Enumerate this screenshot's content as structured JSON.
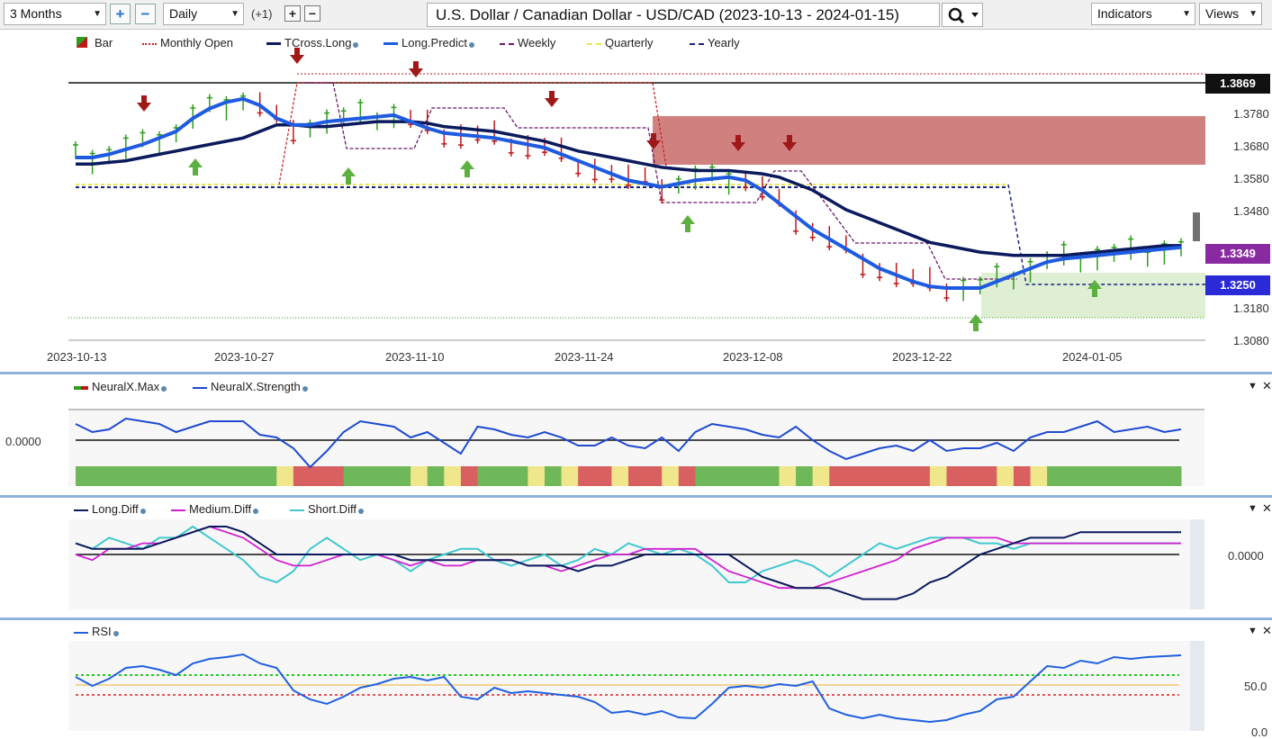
{
  "toolbar": {
    "period": "3 Months",
    "interval": "Daily",
    "offset": "(+1)",
    "title": "U.S. Dollar / Canadian Dollar - USD/CAD (2023-10-13 - 2024-01-15)",
    "indicators_label": "Indicators",
    "views_label": "Views"
  },
  "main_panel": {
    "legend": [
      "Bar",
      "Monthly Open",
      "TCross.Long",
      "Long.Predict",
      "Weekly",
      "Quarterly",
      "Yearly"
    ],
    "price_labels": [
      "1.3780",
      "1.3680",
      "1.3580",
      "1.3480",
      "1.3180",
      "1.3080"
    ],
    "price_tags": {
      "resistance": "1.3869",
      "current": "1.3349",
      "support": "1.3250"
    },
    "date_labels": [
      "2023-10-13",
      "2023-10-27",
      "2023-11-10",
      "2023-11-24",
      "2023-12-08",
      "2023-12-22",
      "2024-01-05"
    ]
  },
  "neural_panel": {
    "legend": [
      "NeuralX.Max",
      "NeuralX.Strength"
    ],
    "zero_label": "0.0000"
  },
  "diff_panel": {
    "legend": [
      "Long.Diff",
      "Medium.Diff",
      "Short.Diff"
    ],
    "zero_label": "0.0000"
  },
  "rsi_panel": {
    "legend": [
      "RSI"
    ],
    "labels": [
      "50.0",
      "0.0"
    ]
  },
  "colors": {
    "tcross": "#0a1a5c",
    "predict": "#1f5be0",
    "bull": "#2e9d1e",
    "bear": "#c01818",
    "monthly": "#d02020",
    "weekly": "#6a1a6a",
    "quarterly": "#e6e650",
    "yearly": "#1a237e",
    "long_diff": "#0a1a5c",
    "medium_diff": "#d020d0",
    "short_diff": "#40c8d0",
    "rsi": "#2060e0"
  },
  "chart_data": {
    "type": "line",
    "x": [
      "2023-10-13",
      "2023-10-16",
      "2023-10-17",
      "2023-10-18",
      "2023-10-19",
      "2023-10-20",
      "2023-10-23",
      "2023-10-24",
      "2023-10-25",
      "2023-10-26",
      "2023-10-27",
      "2023-10-30",
      "2023-10-31",
      "2023-11-01",
      "2023-11-02",
      "2023-11-03",
      "2023-11-06",
      "2023-11-07",
      "2023-11-08",
      "2023-11-09",
      "2023-11-10",
      "2023-11-13",
      "2023-11-14",
      "2023-11-15",
      "2023-11-16",
      "2023-11-17",
      "2023-11-20",
      "2023-11-21",
      "2023-11-22",
      "2023-11-23",
      "2023-11-24",
      "2023-11-27",
      "2023-11-28",
      "2023-11-29",
      "2023-11-30",
      "2023-12-01",
      "2023-12-04",
      "2023-12-05",
      "2023-12-06",
      "2023-12-07",
      "2023-12-08",
      "2023-12-11",
      "2023-12-12",
      "2023-12-13",
      "2023-12-14",
      "2023-12-15",
      "2023-12-18",
      "2023-12-19",
      "2023-12-20",
      "2023-12-21",
      "2023-12-22",
      "2023-12-25",
      "2023-12-26",
      "2023-12-27",
      "2023-12-28",
      "2023-12-29",
      "2024-01-01",
      "2024-01-02",
      "2024-01-03",
      "2024-01-04",
      "2024-01-05",
      "2024-01-08",
      "2024-01-09",
      "2024-01-10",
      "2024-01-11",
      "2024-01-12",
      "2024-01-15"
    ],
    "series": [
      {
        "name": "TCross.Long",
        "values": [
          1.362,
          1.362,
          1.3625,
          1.363,
          1.364,
          1.365,
          1.366,
          1.367,
          1.368,
          1.369,
          1.37,
          1.372,
          1.374,
          1.374,
          1.3735,
          1.3735,
          1.374,
          1.3745,
          1.375,
          1.375,
          1.375,
          1.3745,
          1.3735,
          1.373,
          1.3725,
          1.372,
          1.371,
          1.37,
          1.369,
          1.3675,
          1.366,
          1.365,
          1.364,
          1.363,
          1.362,
          1.361,
          1.3605,
          1.36,
          1.36,
          1.36,
          1.3595,
          1.359,
          1.358,
          1.356,
          1.354,
          1.351,
          1.348,
          1.346,
          1.344,
          1.342,
          1.34,
          1.338,
          1.337,
          1.336,
          1.335,
          1.3345,
          1.334,
          1.334,
          1.334,
          1.334,
          1.3345,
          1.335,
          1.3355,
          1.336,
          1.3365,
          1.337,
          1.337
        ]
      },
      {
        "name": "Long.Predict",
        "values": [
          1.364,
          1.364,
          1.365,
          1.3665,
          1.368,
          1.37,
          1.372,
          1.376,
          1.379,
          1.381,
          1.382,
          1.38,
          1.376,
          1.374,
          1.374,
          1.375,
          1.3755,
          1.376,
          1.3765,
          1.377,
          1.375,
          1.373,
          1.3715,
          1.371,
          1.3705,
          1.37,
          1.369,
          1.368,
          1.367,
          1.365,
          1.363,
          1.361,
          1.359,
          1.357,
          1.356,
          1.355,
          1.356,
          1.357,
          1.3575,
          1.358,
          1.357,
          1.354,
          1.35,
          1.346,
          1.342,
          1.339,
          1.336,
          1.333,
          1.33,
          1.328,
          1.326,
          1.3245,
          1.324,
          1.324,
          1.324,
          1.326,
          1.328,
          1.33,
          1.332,
          1.333,
          1.3335,
          1.334,
          1.3345,
          1.335,
          1.3355,
          1.336,
          1.3365
        ]
      },
      {
        "name": "NeuralX.Strength",
        "values": [
          0.6,
          0.3,
          0.4,
          0.8,
          0.7,
          0.6,
          0.3,
          0.5,
          0.7,
          0.7,
          0.7,
          0.2,
          0.1,
          -0.3,
          -1.0,
          -0.4,
          0.3,
          0.7,
          0.6,
          0.5,
          0.1,
          0.3,
          -0.1,
          -0.5,
          0.5,
          0.4,
          0.2,
          0.1,
          0.3,
          0.1,
          -0.2,
          -0.2,
          0.1,
          -0.2,
          -0.3,
          0.1,
          -0.4,
          0.3,
          0.6,
          0.5,
          0.4,
          0.2,
          0.1,
          0.5,
          0.0,
          -0.4,
          -0.7,
          -0.5,
          -0.3,
          -0.2,
          -0.4,
          0.0,
          -0.4,
          -0.3,
          -0.3,
          -0.1,
          -0.4,
          0.1,
          0.3,
          0.3,
          0.5,
          0.7,
          0.3,
          0.4,
          0.5,
          0.3,
          0.4
        ]
      },
      {
        "name": "Long.Diff",
        "values": [
          0.2,
          0.1,
          0.1,
          0.1,
          0.1,
          0.2,
          0.3,
          0.4,
          0.5,
          0.5,
          0.4,
          0.2,
          0.0,
          0.0,
          0.0,
          0.0,
          0.0,
          0.0,
          0.0,
          0.0,
          -0.1,
          -0.1,
          -0.1,
          -0.1,
          -0.1,
          -0.1,
          -0.1,
          -0.2,
          -0.2,
          -0.2,
          -0.3,
          -0.2,
          -0.2,
          -0.1,
          0.0,
          0.0,
          0.0,
          0.0,
          0.0,
          0.0,
          -0.2,
          -0.4,
          -0.5,
          -0.6,
          -0.6,
          -0.6,
          -0.7,
          -0.8,
          -0.8,
          -0.8,
          -0.7,
          -0.5,
          -0.4,
          -0.2,
          0.0,
          0.1,
          0.2,
          0.3,
          0.3,
          0.3,
          0.4,
          0.4,
          0.4,
          0.4,
          0.4,
          0.4,
          0.4
        ]
      },
      {
        "name": "Medium.Diff",
        "values": [
          0.0,
          -0.1,
          0.1,
          0.1,
          0.2,
          0.2,
          0.3,
          0.4,
          0.5,
          0.4,
          0.3,
          0.1,
          -0.1,
          -0.2,
          -0.2,
          -0.1,
          0.0,
          0.0,
          0.0,
          -0.1,
          -0.2,
          -0.1,
          -0.2,
          -0.2,
          -0.1,
          -0.1,
          -0.1,
          -0.2,
          -0.2,
          -0.3,
          -0.2,
          -0.1,
          0.0,
          0.0,
          0.1,
          0.1,
          0.1,
          0.1,
          -0.1,
          -0.3,
          -0.4,
          -0.5,
          -0.6,
          -0.6,
          -0.6,
          -0.5,
          -0.4,
          -0.3,
          -0.2,
          -0.1,
          0.1,
          0.2,
          0.3,
          0.3,
          0.3,
          0.3,
          0.2,
          0.2,
          0.2,
          0.2,
          0.2,
          0.2,
          0.2,
          0.2,
          0.2,
          0.2,
          0.2
        ]
      },
      {
        "name": "Short.Diff",
        "values": [
          0.2,
          0.1,
          0.3,
          0.2,
          0.1,
          0.3,
          0.3,
          0.5,
          0.3,
          0.1,
          -0.1,
          -0.4,
          -0.5,
          -0.3,
          0.1,
          0.3,
          0.1,
          -0.1,
          0.0,
          -0.1,
          -0.3,
          -0.1,
          0.0,
          0.1,
          0.1,
          -0.1,
          -0.2,
          -0.1,
          0.0,
          -0.2,
          -0.1,
          0.1,
          0.0,
          0.2,
          0.1,
          0.0,
          0.1,
          0.0,
          -0.2,
          -0.5,
          -0.5,
          -0.3,
          -0.2,
          -0.1,
          -0.2,
          -0.4,
          -0.2,
          0.0,
          0.2,
          0.1,
          0.2,
          0.3,
          0.3,
          0.3,
          0.2,
          0.2,
          0.1,
          0.2,
          0.2,
          0.2,
          0.2,
          0.2,
          0.2,
          0.2,
          0.2,
          0.2,
          0.2
        ]
      },
      {
        "name": "RSI",
        "values": [
          60,
          50,
          58,
          70,
          72,
          68,
          62,
          75,
          80,
          82,
          85,
          75,
          70,
          45,
          35,
          30,
          38,
          48,
          52,
          58,
          60,
          56,
          60,
          38,
          35,
          48,
          42,
          44,
          42,
          40,
          38,
          32,
          20,
          22,
          18,
          22,
          15,
          14,
          30,
          48,
          50,
          48,
          52,
          50,
          55,
          25,
          18,
          14,
          18,
          14,
          12,
          10,
          12,
          18,
          22,
          35,
          38,
          55,
          72,
          70,
          78,
          75,
          82,
          80,
          82,
          83,
          84
        ]
      }
    ],
    "ylim_price": [
      1.308,
      1.3869
    ],
    "ylim_rsi": [
      0,
      100
    ]
  }
}
